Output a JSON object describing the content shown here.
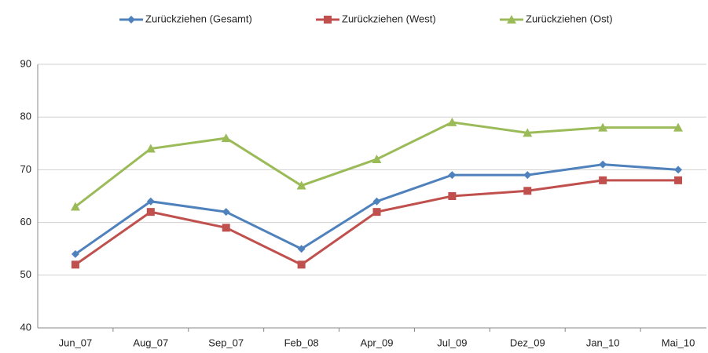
{
  "chart_data": {
    "type": "line",
    "categories": [
      "Jun_07",
      "Aug_07",
      "Sep_07",
      "Feb_08",
      "Apr_09",
      "Jul_09",
      "Dez_09",
      "Jan_10",
      "Mai_10"
    ],
    "series": [
      {
        "name": "Zurückziehen (Gesamt)",
        "color": "#4f81bd",
        "marker": "diamond",
        "values": [
          54,
          64,
          62,
          55,
          64,
          69,
          69,
          71,
          70
        ]
      },
      {
        "name": "Zurückziehen (West)",
        "color": "#c0504d",
        "marker": "square",
        "values": [
          52,
          62,
          59,
          52,
          62,
          65,
          66,
          68,
          68
        ]
      },
      {
        "name": "Zurückziehen (Ost)",
        "color": "#9bbb59",
        "marker": "triangle",
        "values": [
          63,
          74,
          76,
          67,
          72,
          79,
          77,
          78,
          78
        ]
      }
    ],
    "ylim": [
      40,
      90
    ],
    "yticks": [
      40,
      50,
      60,
      70,
      80,
      90
    ],
    "grid": true,
    "legend": "top"
  }
}
